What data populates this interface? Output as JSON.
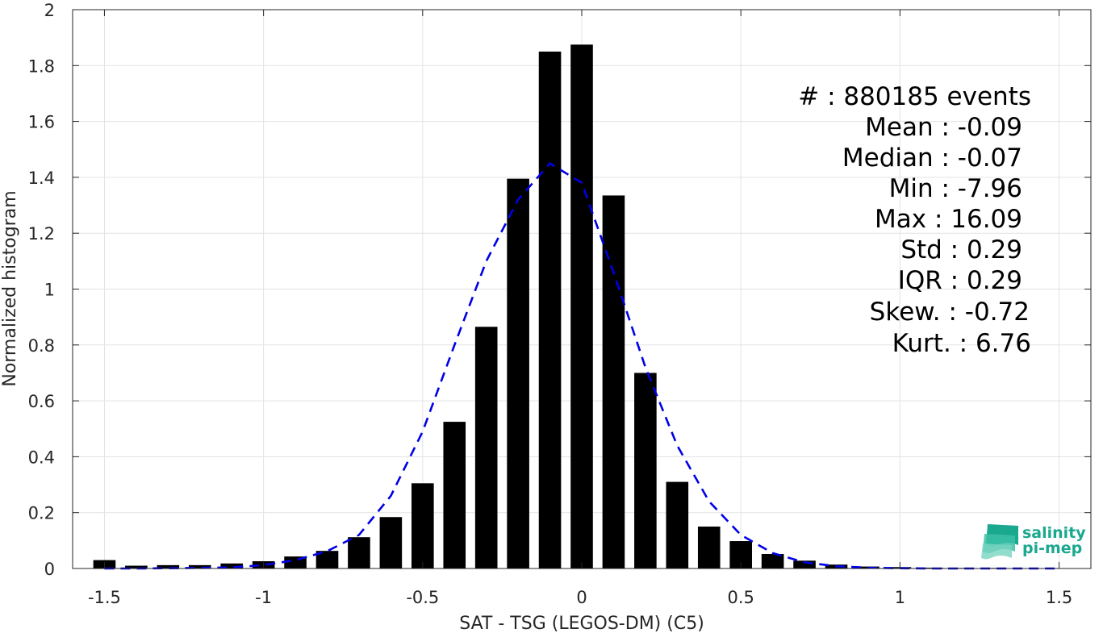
{
  "chart_data": {
    "type": "bar",
    "xlabel": "SAT - TSG (LEGOS-DM) (C5)",
    "ylabel": "Normalized histogram",
    "xlim": [
      -1.6,
      1.6
    ],
    "ylim": [
      0,
      2
    ],
    "xticks": [
      -1.5,
      -1,
      -0.5,
      0,
      0.5,
      1,
      1.5
    ],
    "xtick_labels": [
      "-1.5",
      "-1",
      "-0.5",
      "0",
      "0.5",
      "1",
      "1.5"
    ],
    "yticks": [
      0,
      0.2,
      0.4,
      0.6,
      0.8,
      1,
      1.2,
      1.4,
      1.6,
      1.8,
      2
    ],
    "ytick_labels": [
      "0",
      "0.2",
      "0.4",
      "0.6",
      "0.8",
      "1",
      "1.2",
      "1.4",
      "1.6",
      "1.8",
      "2"
    ],
    "grid": true,
    "bar_color": "#000000",
    "bin_width": 0.1,
    "bars": {
      "x": [
        -1.5,
        -1.4,
        -1.3,
        -1.2,
        -1.1,
        -1.0,
        -0.9,
        -0.8,
        -0.7,
        -0.6,
        -0.5,
        -0.4,
        -0.3,
        -0.2,
        -0.1,
        0.0,
        0.1,
        0.2,
        0.3,
        0.4,
        0.5,
        0.6,
        0.7,
        0.8,
        0.9,
        1.0,
        1.1,
        1.2,
        1.3,
        1.4,
        1.5
      ],
      "values": [
        0.03,
        0.01,
        0.012,
        0.012,
        0.018,
        0.026,
        0.043,
        0.063,
        0.112,
        0.184,
        0.305,
        0.525,
        0.865,
        1.395,
        1.85,
        1.875,
        1.335,
        0.7,
        0.31,
        0.15,
        0.098,
        0.052,
        0.028,
        0.014,
        0.007,
        0.005,
        0.003,
        0.002,
        0.002,
        0.001,
        0.001
      ]
    },
    "fit_curve": {
      "style": "dashed",
      "color": "#0000e6",
      "x": [
        -1.5,
        -1.4,
        -1.3,
        -1.2,
        -1.1,
        -1.0,
        -0.9,
        -0.8,
        -0.7,
        -0.6,
        -0.5,
        -0.4,
        -0.3,
        -0.2,
        -0.1,
        0.0,
        0.1,
        0.2,
        0.3,
        0.4,
        0.5,
        0.6,
        0.7,
        0.8,
        0.9,
        1.0,
        1.1,
        1.2,
        1.3,
        1.4,
        1.5
      ],
      "y": [
        0.0,
        0.0,
        0.001,
        0.002,
        0.004,
        0.012,
        0.03,
        0.062,
        0.12,
        0.26,
        0.49,
        0.8,
        1.1,
        1.32,
        1.45,
        1.38,
        1.06,
        0.72,
        0.44,
        0.24,
        0.12,
        0.055,
        0.022,
        0.008,
        0.003,
        0.001,
        0.0,
        0.0,
        0.0,
        0.0,
        0.0
      ]
    },
    "annotations": [
      "#  : 880185 events",
      "Mean : -0.09",
      "Median : -0.07",
      "Min : -7.96",
      "Max : 16.09",
      "Std : 0.29",
      "IQR : 0.29",
      "Skew. : -0.72",
      "Kurt. : 6.76"
    ],
    "logo": {
      "line1": "salinity",
      "line2": "pi-mep",
      "color": "#1aa88f"
    }
  }
}
